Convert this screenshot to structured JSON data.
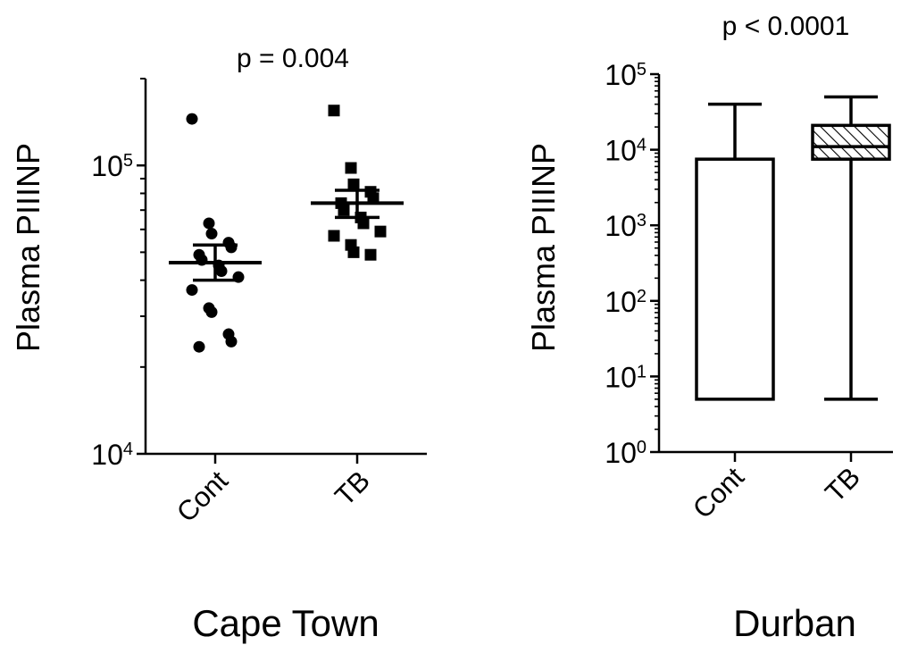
{
  "chart_data": [
    {
      "type": "scatter",
      "caption": "Cape Town",
      "annotation": "p = 0.004",
      "ylabel": "Plasma PIIINP",
      "yscale": "log",
      "ylim": [
        10000,
        200000
      ],
      "y_ticks": [
        {
          "value": 10000,
          "base": "10",
          "exp": "4"
        },
        {
          "value": 100000,
          "base": "10",
          "exp": "5"
        }
      ],
      "categories": [
        "Cont",
        "TB"
      ],
      "series": [
        {
          "category": "Cont",
          "marker": "circle",
          "values": [
            145000,
            63000,
            58000,
            54000,
            52000,
            49000,
            47000,
            45000,
            43000,
            41000,
            37000,
            32000,
            31000,
            26000,
            24500,
            23500
          ],
          "mean": 46000,
          "sem_low": 40000,
          "sem_high": 53000
        },
        {
          "category": "TB",
          "marker": "square",
          "values": [
            155000,
            98000,
            86000,
            81000,
            77000,
            74000,
            70000,
            66000,
            63000,
            59000,
            57000,
            53000,
            50000,
            49000
          ],
          "mean": 74000,
          "sem_low": 66000,
          "sem_high": 82000
        }
      ]
    },
    {
      "type": "box",
      "caption": "Durban",
      "annotation": "p < 0.0001",
      "ylabel": "Plasma PIIINP",
      "yscale": "log",
      "ylim": [
        1,
        100000
      ],
      "y_ticks": [
        {
          "value": 1,
          "base": "10",
          "exp": "0"
        },
        {
          "value": 10,
          "base": "10",
          "exp": "1"
        },
        {
          "value": 100,
          "base": "10",
          "exp": "2"
        },
        {
          "value": 1000,
          "base": "10",
          "exp": "3"
        },
        {
          "value": 10000,
          "base": "10",
          "exp": "4"
        },
        {
          "value": 100000,
          "base": "10",
          "exp": "5"
        }
      ],
      "categories": [
        "Cont",
        "TB"
      ],
      "boxes": [
        {
          "category": "Cont",
          "min": 5,
          "q1": 5,
          "median": 5,
          "q3": 7500,
          "max": 40000,
          "fill": "open"
        },
        {
          "category": "TB",
          "min": 5,
          "q1": 7500,
          "median": 11000,
          "q3": 21000,
          "max": 50000,
          "fill": "hatched"
        }
      ]
    }
  ]
}
